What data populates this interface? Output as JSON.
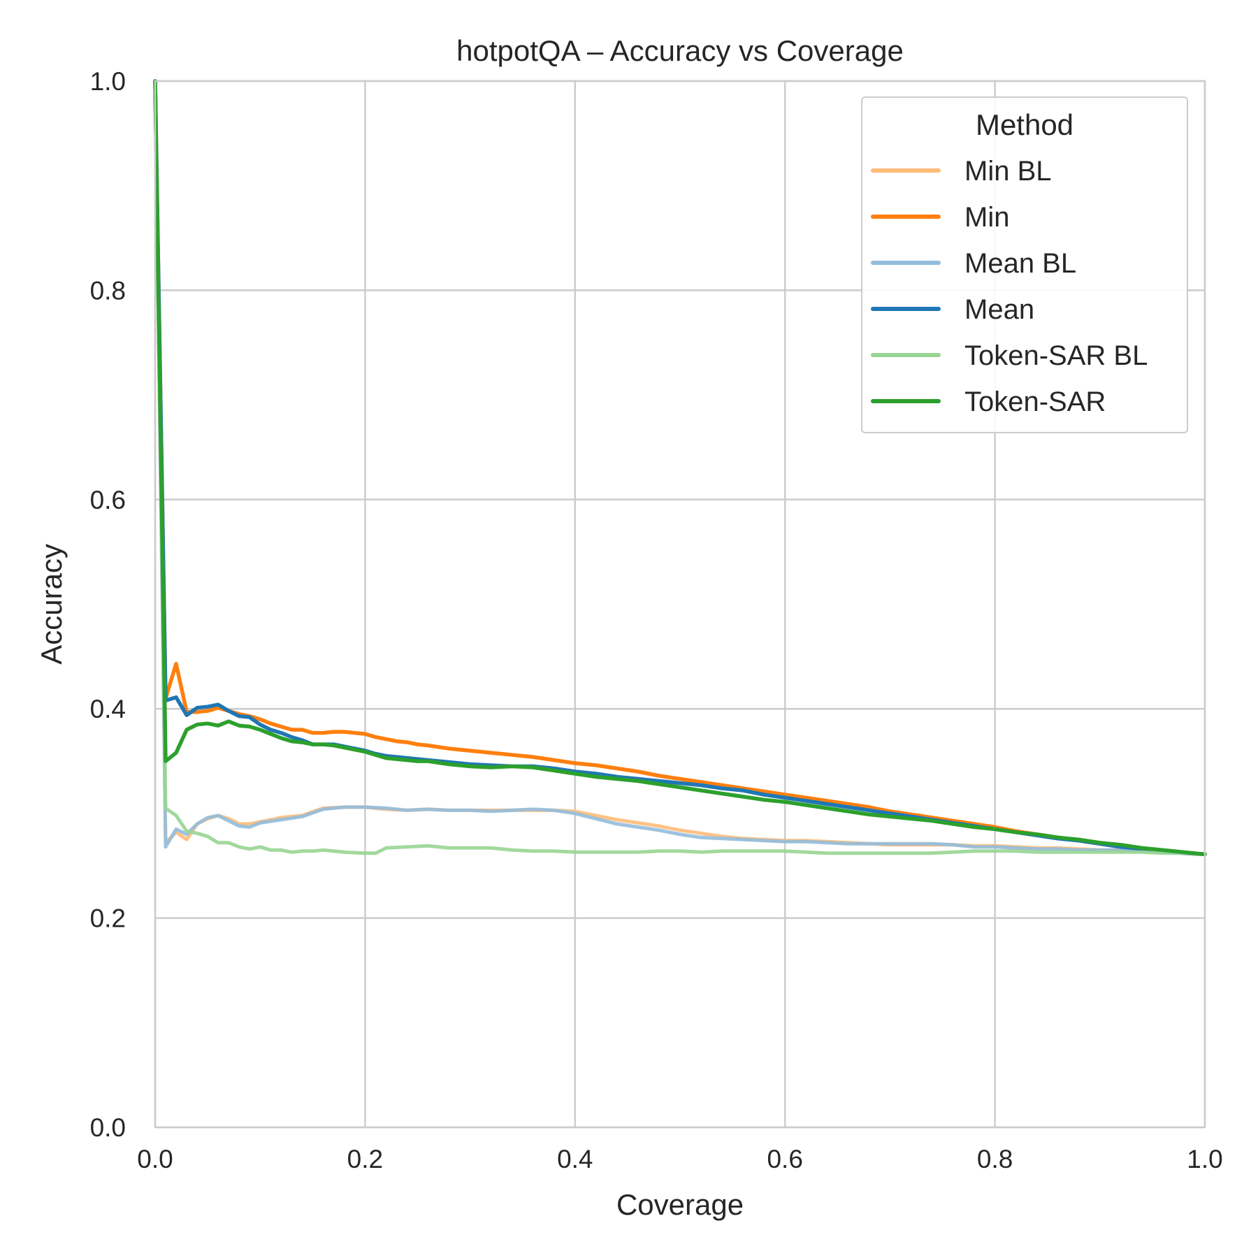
{
  "chart_data": {
    "type": "line",
    "title": "hotpotQA – Accuracy vs Coverage",
    "xlabel": "Coverage",
    "ylabel": "Accuracy",
    "xlim": [
      0.0,
      1.0
    ],
    "ylim": [
      0.0,
      1.0
    ],
    "xticks": [
      "0.0",
      "0.2",
      "0.4",
      "0.6",
      "0.8",
      "1.0"
    ],
    "yticks": [
      "0.0",
      "0.2",
      "0.4",
      "0.6",
      "0.8",
      "1.0"
    ],
    "grid": true,
    "legend": {
      "title": "Method",
      "placement": "top-right"
    },
    "series": [
      {
        "name": "Min BL",
        "color": "#ffbb78",
        "x": [
          0.0,
          0.01,
          0.02,
          0.03,
          0.04,
          0.05,
          0.06,
          0.07,
          0.08,
          0.09,
          0.1,
          0.12,
          0.14,
          0.16,
          0.18,
          0.2,
          0.22,
          0.24,
          0.26,
          0.28,
          0.3,
          0.32,
          0.34,
          0.36,
          0.38,
          0.4,
          0.42,
          0.44,
          0.46,
          0.48,
          0.5,
          0.52,
          0.54,
          0.56,
          0.58,
          0.6,
          0.62,
          0.64,
          0.66,
          0.68,
          0.7,
          0.72,
          0.74,
          0.76,
          0.78,
          0.8,
          0.82,
          0.84,
          0.86,
          0.88,
          0.9,
          0.92,
          0.94,
          0.96,
          0.98,
          1.0
        ],
        "y": [
          1.0,
          0.272,
          0.282,
          0.275,
          0.29,
          0.295,
          0.298,
          0.295,
          0.29,
          0.29,
          0.292,
          0.296,
          0.298,
          0.305,
          0.306,
          0.306,
          0.304,
          0.303,
          0.304,
          0.303,
          0.303,
          0.303,
          0.303,
          0.303,
          0.303,
          0.302,
          0.298,
          0.294,
          0.291,
          0.288,
          0.284,
          0.281,
          0.278,
          0.276,
          0.275,
          0.274,
          0.274,
          0.273,
          0.272,
          0.271,
          0.27,
          0.27,
          0.27,
          0.27,
          0.269,
          0.269,
          0.268,
          0.267,
          0.267,
          0.266,
          0.265,
          0.265,
          0.265,
          0.264,
          0.262,
          0.261
        ]
      },
      {
        "name": "Min",
        "color": "#ff7f0e",
        "x": [
          0.0,
          0.01,
          0.02,
          0.03,
          0.04,
          0.05,
          0.06,
          0.07,
          0.08,
          0.09,
          0.1,
          0.11,
          0.12,
          0.13,
          0.14,
          0.15,
          0.16,
          0.17,
          0.18,
          0.19,
          0.2,
          0.21,
          0.22,
          0.23,
          0.24,
          0.25,
          0.26,
          0.28,
          0.3,
          0.32,
          0.34,
          0.36,
          0.38,
          0.4,
          0.42,
          0.44,
          0.46,
          0.48,
          0.5,
          0.52,
          0.54,
          0.56,
          0.58,
          0.6,
          0.62,
          0.64,
          0.66,
          0.68,
          0.7,
          0.72,
          0.74,
          0.76,
          0.78,
          0.8,
          0.82,
          0.84,
          0.86,
          0.88,
          0.9,
          0.92,
          0.94,
          0.96,
          0.98,
          1.0
        ],
        "y": [
          1.0,
          0.41,
          0.443,
          0.397,
          0.397,
          0.398,
          0.401,
          0.398,
          0.395,
          0.393,
          0.39,
          0.386,
          0.383,
          0.38,
          0.38,
          0.377,
          0.377,
          0.378,
          0.378,
          0.377,
          0.376,
          0.373,
          0.371,
          0.369,
          0.368,
          0.366,
          0.365,
          0.362,
          0.36,
          0.358,
          0.356,
          0.354,
          0.351,
          0.348,
          0.346,
          0.343,
          0.34,
          0.336,
          0.333,
          0.33,
          0.327,
          0.324,
          0.321,
          0.318,
          0.315,
          0.312,
          0.309,
          0.306,
          0.302,
          0.299,
          0.296,
          0.293,
          0.29,
          0.287,
          0.283,
          0.28,
          0.277,
          0.274,
          0.271,
          0.268,
          0.266,
          0.264,
          0.262,
          0.261
        ]
      },
      {
        "name": "Mean BL",
        "color": "#92bcdc",
        "x": [
          0.0,
          0.01,
          0.02,
          0.03,
          0.04,
          0.05,
          0.06,
          0.07,
          0.08,
          0.09,
          0.1,
          0.12,
          0.14,
          0.16,
          0.18,
          0.2,
          0.22,
          0.24,
          0.26,
          0.28,
          0.3,
          0.32,
          0.34,
          0.36,
          0.38,
          0.4,
          0.42,
          0.44,
          0.46,
          0.48,
          0.5,
          0.52,
          0.54,
          0.56,
          0.58,
          0.6,
          0.62,
          0.64,
          0.66,
          0.68,
          0.7,
          0.72,
          0.74,
          0.76,
          0.78,
          0.8,
          0.82,
          0.84,
          0.86,
          0.88,
          0.9,
          0.92,
          0.94,
          0.96,
          0.98,
          1.0
        ],
        "y": [
          1.0,
          0.268,
          0.285,
          0.28,
          0.29,
          0.296,
          0.298,
          0.293,
          0.288,
          0.287,
          0.291,
          0.294,
          0.297,
          0.304,
          0.306,
          0.306,
          0.305,
          0.303,
          0.304,
          0.303,
          0.303,
          0.302,
          0.303,
          0.304,
          0.303,
          0.3,
          0.295,
          0.29,
          0.287,
          0.284,
          0.28,
          0.277,
          0.276,
          0.275,
          0.274,
          0.273,
          0.273,
          0.272,
          0.271,
          0.271,
          0.271,
          0.271,
          0.271,
          0.27,
          0.268,
          0.268,
          0.267,
          0.266,
          0.266,
          0.265,
          0.265,
          0.265,
          0.264,
          0.263,
          0.262,
          0.261
        ]
      },
      {
        "name": "Mean",
        "color": "#1f77b4",
        "x": [
          0.0,
          0.01,
          0.02,
          0.03,
          0.04,
          0.05,
          0.06,
          0.07,
          0.08,
          0.09,
          0.1,
          0.11,
          0.12,
          0.13,
          0.14,
          0.15,
          0.16,
          0.17,
          0.18,
          0.19,
          0.2,
          0.21,
          0.22,
          0.23,
          0.24,
          0.25,
          0.26,
          0.28,
          0.3,
          0.32,
          0.34,
          0.36,
          0.38,
          0.4,
          0.42,
          0.44,
          0.46,
          0.48,
          0.5,
          0.52,
          0.54,
          0.56,
          0.58,
          0.6,
          0.62,
          0.64,
          0.66,
          0.68,
          0.7,
          0.72,
          0.74,
          0.76,
          0.78,
          0.8,
          0.82,
          0.84,
          0.86,
          0.88,
          0.9,
          0.92,
          0.94,
          0.96,
          0.98,
          1.0
        ],
        "y": [
          1.0,
          0.408,
          0.411,
          0.394,
          0.401,
          0.402,
          0.404,
          0.398,
          0.393,
          0.392,
          0.385,
          0.38,
          0.377,
          0.373,
          0.37,
          0.366,
          0.366,
          0.366,
          0.364,
          0.362,
          0.36,
          0.357,
          0.355,
          0.354,
          0.353,
          0.352,
          0.351,
          0.349,
          0.347,
          0.346,
          0.345,
          0.345,
          0.343,
          0.34,
          0.338,
          0.335,
          0.333,
          0.331,
          0.329,
          0.327,
          0.324,
          0.322,
          0.318,
          0.315,
          0.312,
          0.309,
          0.306,
          0.303,
          0.3,
          0.297,
          0.294,
          0.291,
          0.288,
          0.285,
          0.282,
          0.279,
          0.276,
          0.274,
          0.271,
          0.268,
          0.266,
          0.264,
          0.262,
          0.261
        ]
      },
      {
        "name": "Token-SAR BL",
        "color": "#98d594",
        "x": [
          0.0,
          0.01,
          0.02,
          0.03,
          0.04,
          0.05,
          0.06,
          0.07,
          0.08,
          0.09,
          0.1,
          0.11,
          0.12,
          0.13,
          0.14,
          0.15,
          0.16,
          0.18,
          0.2,
          0.21,
          0.22,
          0.24,
          0.26,
          0.28,
          0.3,
          0.32,
          0.34,
          0.36,
          0.38,
          0.4,
          0.42,
          0.44,
          0.46,
          0.48,
          0.5,
          0.52,
          0.54,
          0.56,
          0.58,
          0.6,
          0.62,
          0.64,
          0.66,
          0.68,
          0.7,
          0.72,
          0.74,
          0.76,
          0.78,
          0.8,
          0.82,
          0.84,
          0.86,
          0.88,
          0.9,
          0.92,
          0.94,
          0.96,
          0.98,
          1.0
        ],
        "y": [
          1.0,
          0.305,
          0.298,
          0.283,
          0.281,
          0.278,
          0.272,
          0.272,
          0.268,
          0.266,
          0.268,
          0.265,
          0.265,
          0.263,
          0.264,
          0.264,
          0.265,
          0.263,
          0.262,
          0.262,
          0.267,
          0.268,
          0.269,
          0.267,
          0.267,
          0.267,
          0.265,
          0.264,
          0.264,
          0.263,
          0.263,
          0.263,
          0.263,
          0.264,
          0.264,
          0.263,
          0.264,
          0.264,
          0.264,
          0.264,
          0.263,
          0.262,
          0.262,
          0.262,
          0.262,
          0.262,
          0.262,
          0.263,
          0.264,
          0.264,
          0.264,
          0.263,
          0.263,
          0.263,
          0.263,
          0.263,
          0.263,
          0.262,
          0.262,
          0.261
        ]
      },
      {
        "name": "Token-SAR",
        "color": "#2ca02c",
        "x": [
          0.0,
          0.01,
          0.02,
          0.03,
          0.04,
          0.05,
          0.06,
          0.07,
          0.08,
          0.09,
          0.1,
          0.11,
          0.12,
          0.13,
          0.14,
          0.15,
          0.16,
          0.17,
          0.18,
          0.19,
          0.2,
          0.21,
          0.22,
          0.23,
          0.24,
          0.25,
          0.26,
          0.28,
          0.3,
          0.32,
          0.34,
          0.36,
          0.38,
          0.4,
          0.42,
          0.44,
          0.46,
          0.48,
          0.5,
          0.52,
          0.54,
          0.56,
          0.58,
          0.6,
          0.62,
          0.64,
          0.66,
          0.68,
          0.7,
          0.72,
          0.74,
          0.76,
          0.78,
          0.8,
          0.82,
          0.84,
          0.86,
          0.88,
          0.9,
          0.92,
          0.94,
          0.96,
          0.98,
          1.0
        ],
        "y": [
          1.0,
          0.35,
          0.358,
          0.38,
          0.385,
          0.386,
          0.384,
          0.388,
          0.384,
          0.383,
          0.38,
          0.376,
          0.372,
          0.369,
          0.368,
          0.366,
          0.366,
          0.365,
          0.363,
          0.361,
          0.359,
          0.356,
          0.353,
          0.352,
          0.351,
          0.35,
          0.35,
          0.347,
          0.345,
          0.344,
          0.345,
          0.344,
          0.341,
          0.338,
          0.335,
          0.333,
          0.331,
          0.328,
          0.325,
          0.322,
          0.319,
          0.316,
          0.313,
          0.311,
          0.308,
          0.305,
          0.302,
          0.299,
          0.297,
          0.295,
          0.293,
          0.29,
          0.287,
          0.285,
          0.282,
          0.28,
          0.277,
          0.275,
          0.272,
          0.27,
          0.267,
          0.265,
          0.263,
          0.261
        ]
      }
    ]
  }
}
